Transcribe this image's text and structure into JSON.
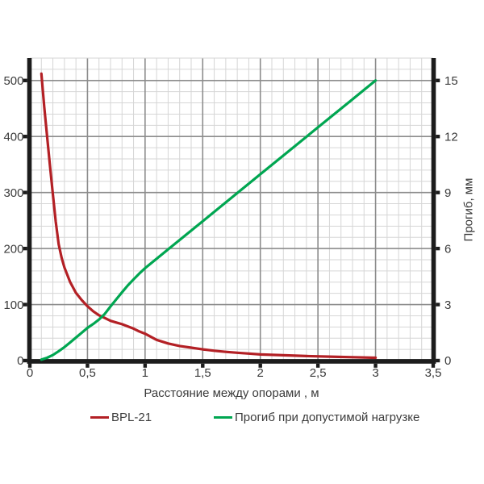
{
  "chart_data": {
    "type": "line",
    "title": "",
    "xlabel": "Расстояние между опорами , м",
    "y2label": "Прогиб, мм",
    "grid": "major+minor",
    "legend_position": "bottom",
    "x_axis": {
      "min": 0,
      "max": 3.5,
      "major_step": 0.5,
      "minor_step": 0.1,
      "tick_values": [
        0,
        0.5,
        1,
        1.5,
        2,
        2.5,
        3,
        3.5
      ],
      "tick_labels": [
        "0",
        "0,5",
        "1",
        "1,5",
        "2",
        "2,5",
        "3",
        "3,5"
      ]
    },
    "y_left": {
      "min": 0,
      "max": 540,
      "major_step": 100,
      "minor_step": 20,
      "tick_values": [
        0,
        100,
        200,
        300,
        400,
        500
      ],
      "tick_labels": [
        "0",
        "100",
        "200",
        "300",
        "400",
        "500"
      ]
    },
    "y_right": {
      "min": 0,
      "max": 16.2,
      "major_step": 3,
      "tick_values": [
        0,
        3,
        6,
        9,
        12,
        15
      ],
      "tick_labels": [
        "0",
        "3",
        "6",
        "9",
        "12",
        "15"
      ],
      "left_units_per_mm": 33.333
    },
    "series": [
      {
        "name": "BPL-21",
        "axis": "left",
        "color": "#B32025",
        "points": [
          [
            0.1,
            512
          ],
          [
            0.125,
            452
          ],
          [
            0.15,
            400
          ],
          [
            0.175,
            347
          ],
          [
            0.2,
            296
          ],
          [
            0.225,
            248
          ],
          [
            0.25,
            208
          ],
          [
            0.275,
            184
          ],
          [
            0.3,
            166
          ],
          [
            0.35,
            140
          ],
          [
            0.4,
            121
          ],
          [
            0.45,
            108
          ],
          [
            0.5,
            97
          ],
          [
            0.55,
            88
          ],
          [
            0.6,
            81
          ],
          [
            0.65,
            76
          ],
          [
            0.7,
            71
          ],
          [
            0.75,
            68
          ],
          [
            0.8,
            65
          ],
          [
            0.85,
            61
          ],
          [
            0.9,
            57
          ],
          [
            0.95,
            52
          ],
          [
            1.0,
            48
          ],
          [
            1.1,
            37
          ],
          [
            1.2,
            30.5
          ],
          [
            1.3,
            26
          ],
          [
            1.4,
            23
          ],
          [
            1.5,
            20
          ],
          [
            1.6,
            17.5
          ],
          [
            1.7,
            15.5
          ],
          [
            1.8,
            14
          ],
          [
            1.9,
            12.5
          ],
          [
            2.0,
            11
          ],
          [
            2.2,
            9.5
          ],
          [
            2.4,
            8
          ],
          [
            2.6,
            7
          ],
          [
            2.8,
            6
          ],
          [
            3.0,
            5
          ]
        ]
      },
      {
        "name": "Прогиб при допустимой нагрузке",
        "axis": "right",
        "color": "#00A651",
        "points": [
          [
            0.1,
            0.05
          ],
          [
            0.15,
            0.15
          ],
          [
            0.2,
            0.3
          ],
          [
            0.25,
            0.5
          ],
          [
            0.3,
            0.72
          ],
          [
            0.35,
            0.97
          ],
          [
            0.4,
            1.23
          ],
          [
            0.45,
            1.49
          ],
          [
            0.5,
            1.75
          ],
          [
            0.55,
            1.96
          ],
          [
            0.6,
            2.2
          ],
          [
            0.65,
            2.5
          ],
          [
            0.7,
            2.9
          ],
          [
            0.75,
            3.28
          ],
          [
            0.8,
            3.66
          ],
          [
            0.85,
            4.02
          ],
          [
            0.9,
            4.35
          ],
          [
            0.95,
            4.66
          ],
          [
            1.0,
            4.95
          ],
          [
            1.25,
            6.21
          ],
          [
            1.5,
            7.46
          ],
          [
            1.75,
            8.72
          ],
          [
            2.0,
            9.98
          ],
          [
            2.25,
            11.23
          ],
          [
            2.5,
            12.49
          ],
          [
            2.75,
            13.74
          ],
          [
            3.0,
            15.0
          ]
        ]
      }
    ],
    "colors": {
      "axis": "#1c1c1c",
      "grid_major": "#8c8c8c",
      "grid_minor": "#d6d6d6",
      "text": "#3b3b3b",
      "background": "#ffffff"
    }
  }
}
